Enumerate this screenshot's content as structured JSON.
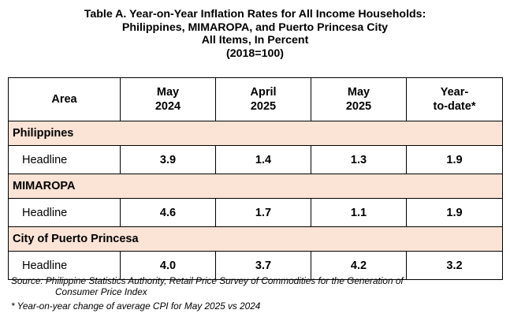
{
  "title": {
    "line1": "Table A. Year-on-Year Inflation Rates for All Income Households:",
    "line2": "Philippines, MIMAROPA, and Puerto Princesa City",
    "line3": "All Items, In Percent",
    "line4": "(2018=100)"
  },
  "table": {
    "headers": [
      {
        "line1": "Area",
        "line2": ""
      },
      {
        "line1": "May",
        "line2": "2024"
      },
      {
        "line1": "April",
        "line2": "2025"
      },
      {
        "line1": "May",
        "line2": "2025"
      },
      {
        "line1": "Year-",
        "line2": "to-date*"
      }
    ],
    "sections": [
      {
        "name": "Philippines",
        "row": {
          "label": "Headline",
          "values": [
            "3.9",
            "1.4",
            "1.3",
            "1.9"
          ]
        }
      },
      {
        "name": "MIMAROPA",
        "row": {
          "label": "Headline",
          "values": [
            "4.6",
            "1.7",
            "1.1",
            "1.9"
          ]
        }
      },
      {
        "name": "City of Puerto Princesa",
        "row": {
          "label": "Headline",
          "values": [
            "4.0",
            "3.7",
            "4.2",
            "3.2"
          ]
        }
      }
    ],
    "section_color": "#fbe3d6"
  },
  "footnotes": {
    "source_line1": "Source: Philippine Statistics Authority, Retail Price Survey of Commodities for the Generation of",
    "source_line2": "Consumer Price Index",
    "note": "* Year-on-year change of average CPI for May 2025 vs 2024"
  }
}
